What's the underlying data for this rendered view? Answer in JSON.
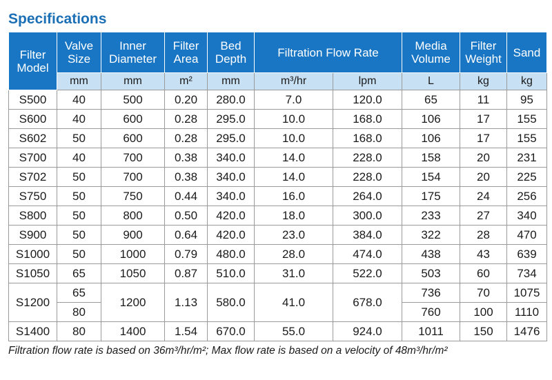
{
  "title": "Specifications",
  "headers": {
    "filter_model": "Filter Model",
    "valve_size": "Valve Size",
    "inner_diameter": "Inner Diameter",
    "filter_area": "Filter Area",
    "bed_depth": "Bed Depth",
    "filtration_flow_rate": "Filtration Flow Rate",
    "media_volume": "Media Volume",
    "filter_weight": "Filter Weight",
    "sand": "Sand"
  },
  "units": [
    "mm",
    "mm",
    "m²",
    "mm",
    "m³/hr",
    "lpm",
    "L",
    "kg",
    "kg"
  ],
  "rows": [
    [
      "S500",
      "40",
      "500",
      "0.20",
      "280.0",
      "7.0",
      "120.0",
      "65",
      "11",
      "95"
    ],
    [
      "S600",
      "40",
      "600",
      "0.28",
      "295.0",
      "10.0",
      "168.0",
      "106",
      "17",
      "155"
    ],
    [
      "S602",
      "50",
      "600",
      "0.28",
      "295.0",
      "10.0",
      "168.0",
      "106",
      "17",
      "155"
    ],
    [
      "S700",
      "40",
      "700",
      "0.38",
      "340.0",
      "14.0",
      "228.0",
      "158",
      "20",
      "231"
    ],
    [
      "S702",
      "50",
      "700",
      "0.38",
      "340.0",
      "14.0",
      "228.0",
      "154",
      "20",
      "225"
    ],
    [
      "S750",
      "50",
      "750",
      "0.44",
      "340.0",
      "16.0",
      "264.0",
      "175",
      "24",
      "256"
    ],
    [
      "S800",
      "50",
      "800",
      "0.50",
      "420.0",
      "18.0",
      "300.0",
      "233",
      "27",
      "340"
    ],
    [
      "S900",
      "50",
      "900",
      "0.64",
      "420.0",
      "23.0",
      "384.0",
      "322",
      "28",
      "470"
    ],
    [
      "S1000",
      "50",
      "1000",
      "0.79",
      "480.0",
      "28.0",
      "474.0",
      "438",
      "43",
      "639"
    ],
    [
      "S1050",
      "65",
      "1050",
      "0.87",
      "510.0",
      "31.0",
      "522.0",
      "503",
      "60",
      "734"
    ]
  ],
  "s1200": {
    "model": "S1200",
    "valve_sizes": [
      "65",
      "80"
    ],
    "inner_diameter": "1200",
    "filter_area": "1.13",
    "bed_depth": "580.0",
    "flow_m3hr": "41.0",
    "flow_lpm": "678.0",
    "media_volumes": [
      "736",
      "760"
    ],
    "filter_weights": [
      "70",
      "100"
    ],
    "sands": [
      "1075",
      "1110"
    ]
  },
  "s1400": [
    "S1400",
    "80",
    "1400",
    "1.54",
    "670.0",
    "55.0",
    "924.0",
    "1011",
    "150",
    "1476"
  ],
  "footnote": "Filtration flow rate is based on 36m³/hr/m²; Max flow rate is based on a velocity of 48m³/hr/m²"
}
